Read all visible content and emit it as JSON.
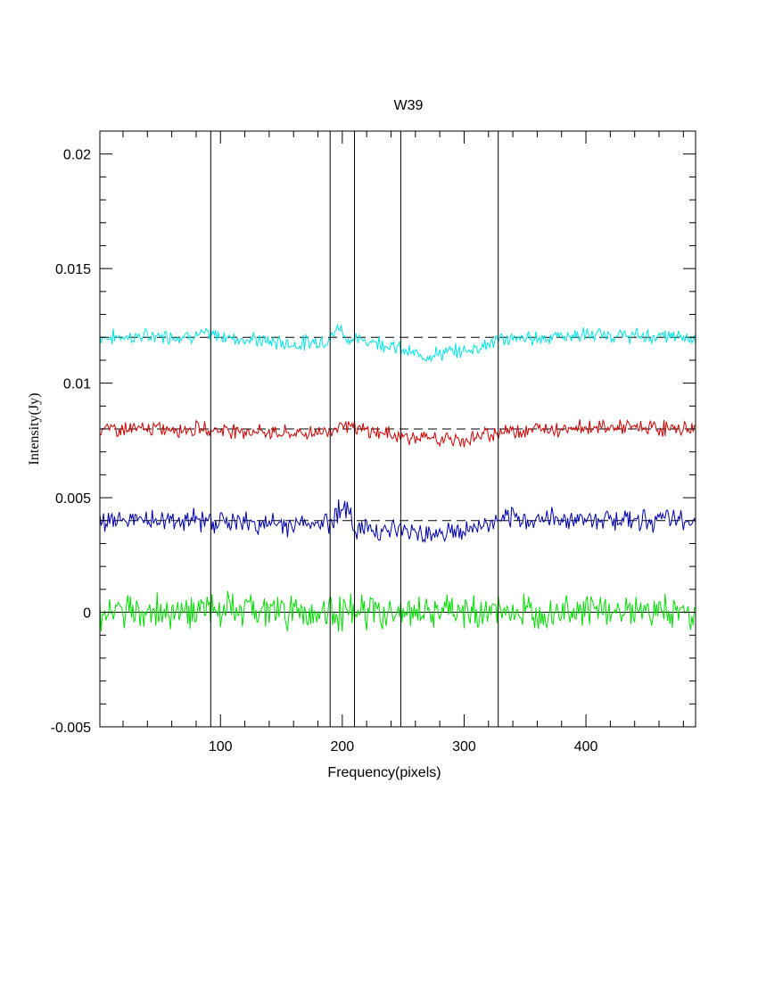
{
  "chart_data": {
    "type": "line",
    "title": "W39",
    "xlabel": "Frequency(pixels)",
    "ylabel": "Intensity(Jy)",
    "xlim": [
      1,
      490
    ],
    "ylim": [
      -0.005,
      0.021
    ],
    "x_ticks": [
      {
        "value": 100,
        "label": "100"
      },
      {
        "value": 200,
        "label": "200"
      },
      {
        "value": 300,
        "label": "300"
      },
      {
        "value": 400,
        "label": "400"
      }
    ],
    "y_ticks": [
      {
        "value": -0.005,
        "label": "-0.005"
      },
      {
        "value": 0,
        "label": "0"
      },
      {
        "value": 0.005,
        "label": "0.005"
      },
      {
        "value": 0.01,
        "label": "0.01"
      },
      {
        "value": 0.015,
        "label": "0.015"
      },
      {
        "value": 0.02,
        "label": "0.02"
      }
    ],
    "vertical_lines": [
      92,
      190,
      210,
      248,
      328
    ],
    "grid": false,
    "legend": "none",
    "series": [
      {
        "color": "#00e5e5",
        "baseline": 0.012,
        "noise_amplitude": 0.0004,
        "x": [
          1,
          92,
          160,
          190,
          197,
          205,
          230,
          262,
          300,
          330,
          400,
          490
        ],
        "y": [
          0.012,
          0.0121,
          0.0117,
          0.0119,
          0.0125,
          0.0119,
          0.0118,
          0.0112,
          0.0114,
          0.0119,
          0.0121,
          0.012
        ]
      },
      {
        "color": "#cc0000",
        "baseline": 0.008,
        "noise_amplitude": 0.0004,
        "x": [
          1,
          92,
          160,
          190,
          200,
          210,
          260,
          300,
          330,
          400,
          490
        ],
        "y": [
          0.008,
          0.008,
          0.0078,
          0.0079,
          0.0083,
          0.008,
          0.0076,
          0.0075,
          0.0079,
          0.0081,
          0.008
        ]
      },
      {
        "color": "#0000aa",
        "baseline": 0.004,
        "noise_amplitude": 0.0006,
        "x": [
          1,
          92,
          150,
          190,
          200,
          210,
          260,
          300,
          330,
          400,
          490
        ],
        "y": [
          0.004,
          0.004,
          0.0038,
          0.0039,
          0.0048,
          0.0037,
          0.0035,
          0.0035,
          0.004,
          0.0041,
          0.004
        ]
      },
      {
        "color": "#00dd00",
        "baseline": 0,
        "noise_amplitude": 0.0009,
        "x": [
          1,
          92,
          200,
          300,
          400,
          490
        ],
        "y": [
          0,
          0.0001,
          0.0,
          0.0,
          0.0001,
          0.0
        ]
      }
    ]
  }
}
